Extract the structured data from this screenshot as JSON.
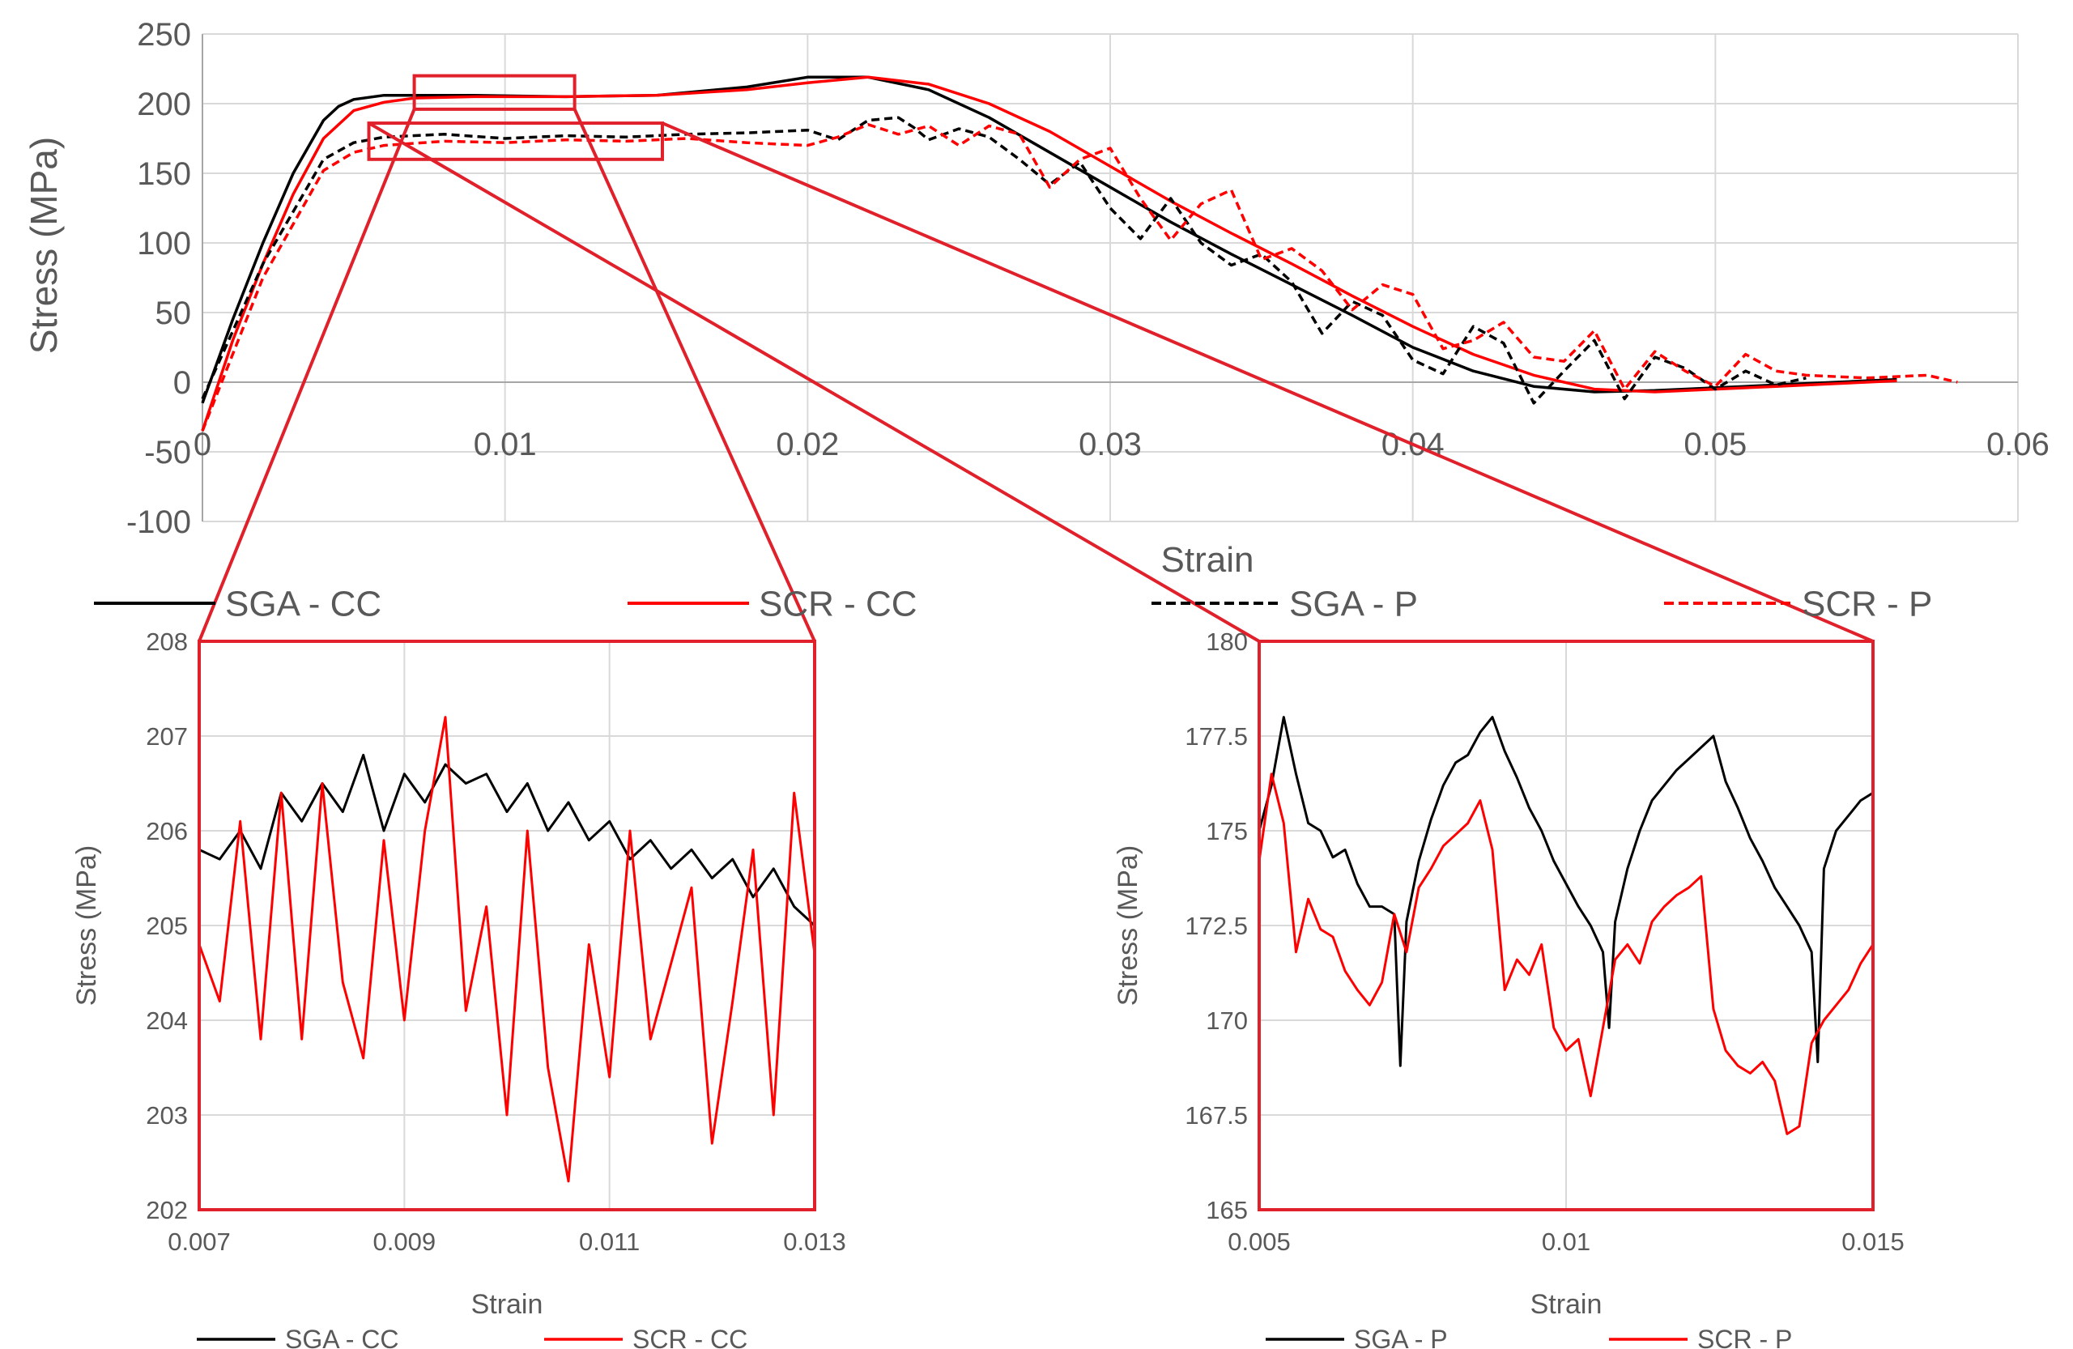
{
  "chart_data": [
    {
      "id": "main",
      "type": "line",
      "title": "",
      "xlabel": "Strain",
      "ylabel": "Stress (MPa)",
      "xlim": [
        0,
        0.06
      ],
      "ylim": [
        -100,
        250
      ],
      "xticks": [
        0,
        0.01,
        0.02,
        0.03,
        0.04,
        0.05,
        0.06
      ],
      "xtick_labels": [
        "0",
        "0.01",
        "0.02",
        "0.03",
        "0.04",
        "0.05",
        "0.06"
      ],
      "yticks": [
        -100,
        -50,
        0,
        50,
        100,
        150,
        200,
        250
      ],
      "ytick_labels": [
        "-100",
        "-50",
        "0",
        "50",
        "100",
        "150",
        "200",
        "250"
      ],
      "grid": true,
      "legend_position": "bottom",
      "series": [
        {
          "name": "SGA - CC",
          "color": "#000000",
          "dash": false,
          "x": [
            0.0,
            0.001,
            0.002,
            0.003,
            0.004,
            0.0045,
            0.005,
            0.006,
            0.007,
            0.009,
            0.012,
            0.015,
            0.018,
            0.02,
            0.022,
            0.024,
            0.026,
            0.028,
            0.03,
            0.032,
            0.034,
            0.036,
            0.038,
            0.04,
            0.042,
            0.044,
            0.046,
            0.048,
            0.05,
            0.052,
            0.054,
            0.056
          ],
          "y": [
            -15,
            45,
            100,
            150,
            188,
            198,
            203,
            206,
            206,
            206,
            205,
            206,
            212,
            219,
            219,
            210,
            190,
            165,
            140,
            115,
            92,
            70,
            48,
            25,
            8,
            -3,
            -7,
            -6,
            -4,
            -2,
            0,
            2
          ]
        },
        {
          "name": "SCR - CC",
          "color": "#ff0000",
          "dash": false,
          "x": [
            0.0,
            0.001,
            0.002,
            0.003,
            0.004,
            0.005,
            0.006,
            0.007,
            0.009,
            0.012,
            0.015,
            0.018,
            0.02,
            0.022,
            0.024,
            0.026,
            0.028,
            0.03,
            0.032,
            0.034,
            0.036,
            0.038,
            0.04,
            0.042,
            0.044,
            0.046,
            0.048,
            0.05,
            0.052,
            0.054,
            0.056
          ],
          "y": [
            -35,
            30,
            85,
            135,
            175,
            195,
            201,
            204,
            205,
            205,
            206,
            210,
            215,
            219,
            214,
            200,
            180,
            155,
            130,
            107,
            85,
            62,
            40,
            20,
            5,
            -5,
            -7,
            -5,
            -3,
            -1,
            1
          ]
        },
        {
          "name": "SGA - P",
          "color": "#000000",
          "dash": true,
          "x": [
            0.0,
            0.002,
            0.004,
            0.005,
            0.006,
            0.008,
            0.01,
            0.012,
            0.014,
            0.016,
            0.018,
            0.02,
            0.021,
            0.022,
            0.023,
            0.0235,
            0.024,
            0.025,
            0.026,
            0.027,
            0.028,
            0.029,
            0.03,
            0.031,
            0.032,
            0.033,
            0.034,
            0.035,
            0.036,
            0.037,
            0.038,
            0.039,
            0.04,
            0.041,
            0.042,
            0.043,
            0.044,
            0.045,
            0.046,
            0.047,
            0.048,
            0.049,
            0.05,
            0.051,
            0.052,
            0.053
          ],
          "y": [
            -12,
            85,
            160,
            172,
            176,
            178,
            175,
            177,
            176,
            178,
            179,
            181,
            174,
            188,
            190,
            183,
            174,
            182,
            176,
            160,
            142,
            158,
            125,
            103,
            132,
            100,
            84,
            92,
            72,
            35,
            58,
            48,
            16,
            6,
            40,
            28,
            -15,
            8,
            30,
            -12,
            18,
            10,
            -5,
            8,
            -2,
            3
          ]
        },
        {
          "name": "SCR - P",
          "color": "#ff0000",
          "dash": true,
          "x": [
            0.0,
            0.002,
            0.004,
            0.005,
            0.006,
            0.008,
            0.01,
            0.012,
            0.014,
            0.016,
            0.018,
            0.02,
            0.021,
            0.022,
            0.023,
            0.024,
            0.025,
            0.026,
            0.027,
            0.028,
            0.029,
            0.03,
            0.031,
            0.032,
            0.033,
            0.034,
            0.035,
            0.036,
            0.037,
            0.038,
            0.039,
            0.04,
            0.041,
            0.042,
            0.043,
            0.044,
            0.045,
            0.046,
            0.047,
            0.048,
            0.049,
            0.05,
            0.051,
            0.052,
            0.053,
            0.055,
            0.057,
            0.058
          ],
          "y": [
            -35,
            75,
            152,
            165,
            170,
            173,
            172,
            174,
            173,
            175,
            172,
            170,
            176,
            185,
            178,
            184,
            170,
            184,
            178,
            140,
            160,
            168,
            132,
            102,
            128,
            138,
            88,
            96,
            80,
            52,
            70,
            63,
            24,
            30,
            43,
            18,
            15,
            37,
            -5,
            22,
            8,
            -3,
            20,
            8,
            5,
            3,
            5,
            0
          ]
        }
      ]
    },
    {
      "id": "inset-cc",
      "type": "line",
      "title": "",
      "xlabel": "Strain",
      "ylabel": "Stress (MPa)",
      "xlim": [
        0.007,
        0.013
      ],
      "ylim": [
        202,
        208
      ],
      "xticks": [
        0.007,
        0.009,
        0.011,
        0.013
      ],
      "xtick_labels": [
        "0.007",
        "0.009",
        "0.011",
        "0.013"
      ],
      "yticks": [
        202,
        203,
        204,
        205,
        206,
        207,
        208
      ],
      "ytick_labels": [
        "202",
        "203",
        "204",
        "205",
        "206",
        "207",
        "208"
      ],
      "grid": true,
      "legend_position": "bottom",
      "series": [
        {
          "name": "SGA - CC",
          "color": "#000000",
          "x": [
            0.007,
            0.0072,
            0.0074,
            0.0076,
            0.0078,
            0.008,
            0.0082,
            0.0084,
            0.0086,
            0.0088,
            0.009,
            0.0092,
            0.0094,
            0.0096,
            0.0098,
            0.01,
            0.0102,
            0.0104,
            0.0106,
            0.0108,
            0.011,
            0.0112,
            0.0114,
            0.0116,
            0.0118,
            0.012,
            0.0122,
            0.0124,
            0.0126,
            0.0128,
            0.013
          ],
          "y": [
            205.8,
            205.7,
            206.0,
            205.6,
            206.4,
            206.1,
            206.5,
            206.2,
            206.8,
            206.0,
            206.6,
            206.3,
            206.7,
            206.5,
            206.6,
            206.2,
            206.5,
            206.0,
            206.3,
            205.9,
            206.1,
            205.7,
            205.9,
            205.6,
            205.8,
            205.5,
            205.7,
            205.3,
            205.6,
            205.2,
            205.0
          ]
        },
        {
          "name": "SCR - CC",
          "color": "#ff0000",
          "x": [
            0.007,
            0.0072,
            0.0074,
            0.0076,
            0.0078,
            0.008,
            0.0082,
            0.0084,
            0.0086,
            0.0088,
            0.009,
            0.0092,
            0.0094,
            0.0096,
            0.0098,
            0.01,
            0.0102,
            0.0104,
            0.0106,
            0.0108,
            0.011,
            0.0112,
            0.0114,
            0.0116,
            0.0118,
            0.012,
            0.0122,
            0.0124,
            0.0126,
            0.0128,
            0.013
          ],
          "y": [
            204.8,
            204.2,
            206.1,
            203.8,
            206.4,
            203.8,
            206.5,
            204.4,
            203.6,
            205.9,
            204.0,
            206.0,
            207.2,
            204.1,
            205.2,
            203.0,
            206.0,
            203.5,
            202.3,
            204.8,
            203.4,
            206.0,
            203.8,
            204.6,
            205.4,
            202.7,
            204.2,
            205.8,
            203.0,
            206.4,
            204.7
          ]
        }
      ]
    },
    {
      "id": "inset-p",
      "type": "line",
      "title": "",
      "xlabel": "Strain",
      "ylabel": "Stress (MPa)",
      "xlim": [
        0.005,
        0.015
      ],
      "ylim": [
        165,
        180
      ],
      "xticks": [
        0.005,
        0.01,
        0.015
      ],
      "xtick_labels": [
        "0.005",
        "0.01",
        "0.015"
      ],
      "yticks": [
        165,
        167.5,
        170,
        172.5,
        175,
        177.5,
        180
      ],
      "ytick_labels": [
        "165",
        "167.5",
        "170",
        "172.5",
        "175",
        "177.5",
        "180"
      ],
      "grid": true,
      "legend_position": "bottom",
      "series": [
        {
          "name": "SGA - P",
          "color": "#000000",
          "x": [
            0.005,
            0.0052,
            0.0054,
            0.0056,
            0.0058,
            0.006,
            0.0062,
            0.0064,
            0.0066,
            0.0068,
            0.007,
            0.0072,
            0.0073,
            0.0074,
            0.0076,
            0.0078,
            0.008,
            0.0082,
            0.0084,
            0.0086,
            0.0088,
            0.009,
            0.0092,
            0.0094,
            0.0096,
            0.0098,
            0.01,
            0.0102,
            0.0104,
            0.0106,
            0.0107,
            0.0108,
            0.011,
            0.0112,
            0.0114,
            0.0116,
            0.0118,
            0.012,
            0.0122,
            0.0124,
            0.0126,
            0.0128,
            0.013,
            0.0132,
            0.0134,
            0.0136,
            0.0138,
            0.014,
            0.0141,
            0.0142,
            0.0144,
            0.0146,
            0.0148,
            0.015
          ],
          "y": [
            175.0,
            176.2,
            178.0,
            176.5,
            175.2,
            175.0,
            174.3,
            174.5,
            173.6,
            173.0,
            173.0,
            172.8,
            168.8,
            172.6,
            174.2,
            175.3,
            176.2,
            176.8,
            177.0,
            177.6,
            178.0,
            177.1,
            176.4,
            175.6,
            175.0,
            174.2,
            173.6,
            173.0,
            172.5,
            171.8,
            169.8,
            172.6,
            174.0,
            175.0,
            175.8,
            176.2,
            176.6,
            176.9,
            177.2,
            177.5,
            176.3,
            175.6,
            174.8,
            174.2,
            173.5,
            173.0,
            172.5,
            171.8,
            168.9,
            174.0,
            175.0,
            175.4,
            175.8,
            176.0
          ]
        },
        {
          "name": "SCR - P",
          "color": "#ff0000",
          "x": [
            0.005,
            0.0052,
            0.0054,
            0.0056,
            0.0058,
            0.006,
            0.0062,
            0.0064,
            0.0066,
            0.0068,
            0.007,
            0.0072,
            0.0074,
            0.0076,
            0.0078,
            0.008,
            0.0082,
            0.0084,
            0.0086,
            0.0088,
            0.009,
            0.0092,
            0.0094,
            0.0096,
            0.0098,
            0.01,
            0.0102,
            0.0104,
            0.0106,
            0.0108,
            0.011,
            0.0112,
            0.0114,
            0.0116,
            0.0118,
            0.012,
            0.0122,
            0.0124,
            0.0126,
            0.0128,
            0.013,
            0.0132,
            0.0134,
            0.0136,
            0.0138,
            0.014,
            0.0142,
            0.0144,
            0.0146,
            0.0148,
            0.015
          ],
          "y": [
            174.2,
            176.5,
            175.2,
            171.8,
            173.2,
            172.4,
            172.2,
            171.3,
            170.8,
            170.4,
            171.0,
            172.8,
            171.8,
            173.5,
            174.0,
            174.6,
            174.9,
            175.2,
            175.8,
            174.5,
            170.8,
            171.6,
            171.2,
            172.0,
            169.8,
            169.2,
            169.5,
            168.0,
            169.8,
            171.6,
            172.0,
            171.5,
            172.6,
            173.0,
            173.3,
            173.5,
            173.8,
            170.3,
            169.2,
            168.8,
            168.6,
            168.9,
            168.4,
            167.0,
            167.2,
            169.4,
            170.0,
            170.4,
            170.8,
            171.5,
            172.0
          ]
        }
      ]
    }
  ],
  "legend_main": [
    "SGA - CC",
    "SCR - CC",
    "SGA - P",
    "SCR - P"
  ],
  "legend_inset_cc": [
    "SGA - CC",
    "SCR - CC"
  ],
  "legend_inset_p": [
    "SGA - P",
    "SCR - P"
  ],
  "colors": {
    "highlight": "#e0202a",
    "grid": "#d9d9d9",
    "axis": "#a6a6a6",
    "text": "#595959"
  }
}
